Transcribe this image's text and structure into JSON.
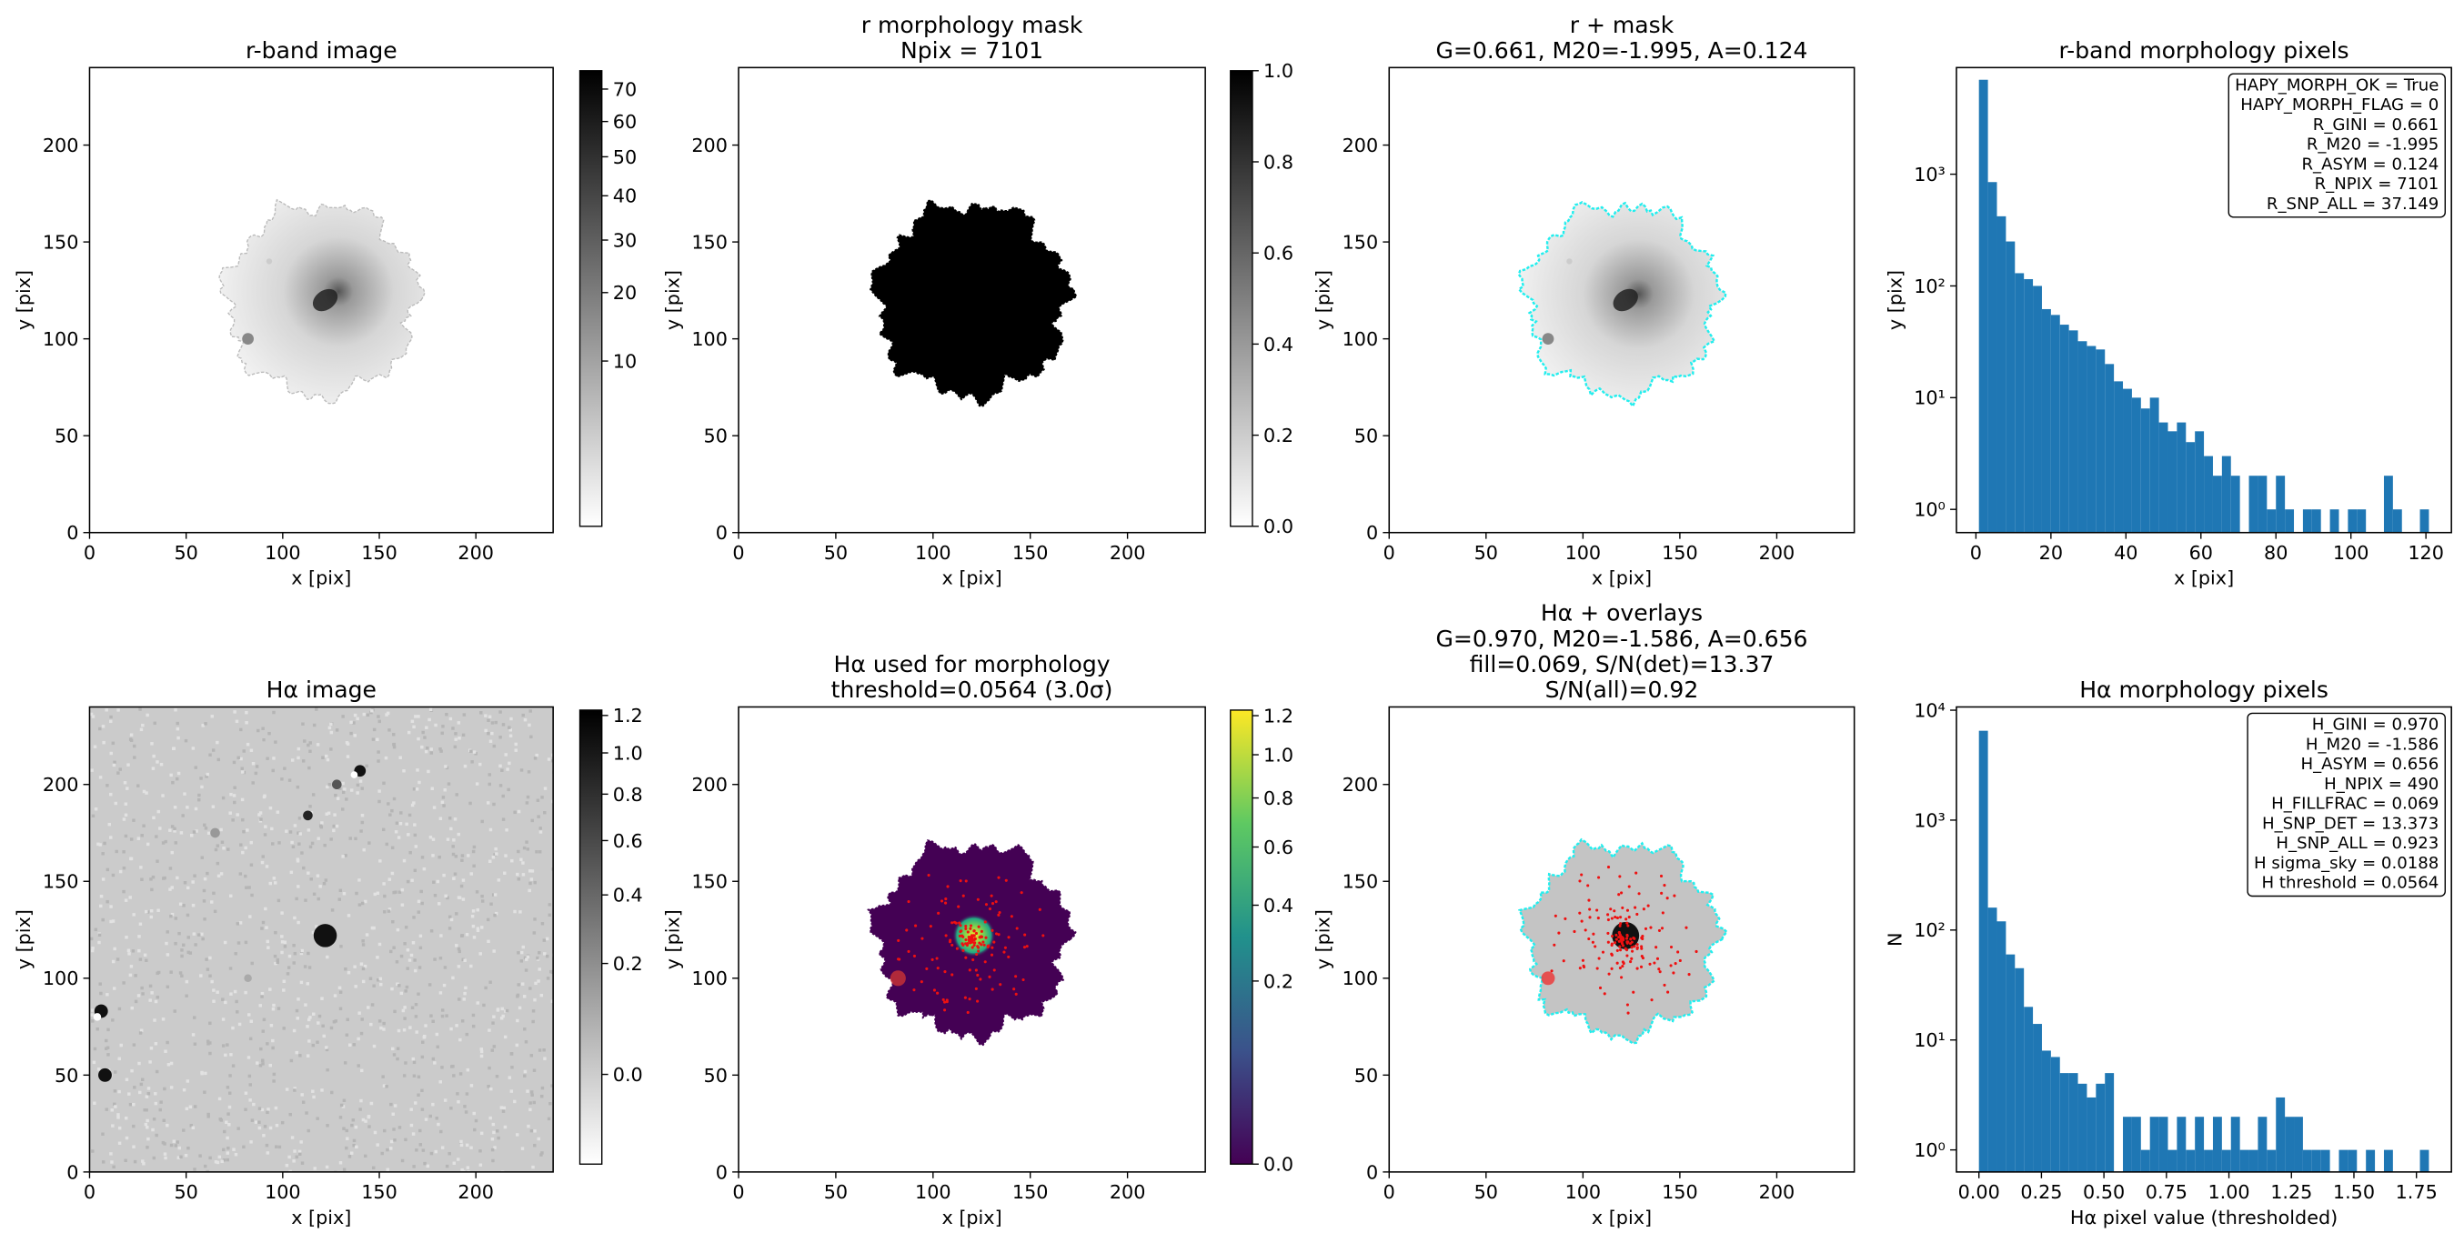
{
  "chart_data": [
    {
      "type": "image",
      "title": [
        "r-band image"
      ],
      "xlabel": "x [pix]",
      "ylabel": "y [pix]",
      "xlim": [
        0,
        240
      ],
      "ylim": [
        0,
        240
      ],
      "xticks": [
        0,
        50,
        100,
        150,
        200
      ],
      "yticks": [
        0,
        50,
        100,
        150,
        200
      ],
      "colorbar": {
        "colormap": "gray_r",
        "scale": "sqrt",
        "clim": [
          0,
          76
        ],
        "ticks": [
          10,
          20,
          30,
          40,
          50,
          60,
          70
        ]
      }
    },
    {
      "type": "image",
      "title": [
        "r morphology mask",
        "Npix = 7101"
      ],
      "xlabel": "x [pix]",
      "ylabel": "y [pix]",
      "xlim": [
        0,
        240
      ],
      "ylim": [
        0,
        240
      ],
      "xticks": [
        0,
        50,
        100,
        150,
        200
      ],
      "yticks": [
        0,
        50,
        100,
        150,
        200
      ],
      "colorbar": {
        "colormap": "gray_r",
        "scale": "linear",
        "clim": [
          0,
          1
        ],
        "ticks": [
          {
            "value": 0,
            "label": "0.0"
          },
          0.2,
          0.4,
          0.6,
          0.8,
          {
            "value": 1,
            "label": "1.0"
          }
        ]
      }
    },
    {
      "type": "image",
      "title": [
        "r + mask",
        "G=0.661, M20=-1.995, A=0.124"
      ],
      "xlabel": "x [pix]",
      "ylabel": "y [pix]",
      "xlim": [
        0,
        240
      ],
      "ylim": [
        0,
        240
      ],
      "xticks": [
        0,
        50,
        100,
        150,
        200
      ],
      "yticks": [
        0,
        50,
        100,
        150,
        200
      ]
    },
    {
      "type": "histogram",
      "title": [
        "r-band morphology pixels"
      ],
      "xlabel": "x [pix]",
      "ylabel": "y [pix]",
      "color": "#1f77b4",
      "log_y": true,
      "xlim": [
        -5.2,
        126.8
      ],
      "ylim": [
        0.62,
        9000
      ],
      "xticks": [
        0,
        20,
        40,
        60,
        80,
        100,
        120
      ],
      "yticks": [
        {
          "value": 1,
          "label": "10⁰"
        },
        {
          "value": 10,
          "label": "10¹"
        },
        {
          "value": 100,
          "label": "10²"
        },
        {
          "value": 1000,
          "label": "10³"
        }
      ],
      "bins": [
        0.8,
        3.2,
        5.6,
        8,
        10.4,
        12.8,
        15.2,
        17.6,
        20,
        22.4,
        24.8,
        27.2,
        29.6,
        32,
        34.4,
        36.8,
        39.2,
        41.6,
        44,
        46.4,
        48.8,
        51.2,
        53.6,
        56,
        58.4,
        60.8,
        63.2,
        65.6,
        68,
        70.4,
        72.8,
        75.2,
        77.6,
        80,
        82.4,
        84.8,
        87.2,
        89.6,
        92,
        94.4,
        96.8,
        99.2,
        101.6,
        104,
        106.4,
        108.8,
        111.2,
        113.6,
        116,
        118.4,
        120.8
      ],
      "values": [
        7000,
        850,
        420,
        250,
        130,
        115,
        100,
        62,
        55,
        45,
        40,
        32,
        29,
        27,
        20,
        14,
        12,
        10,
        8,
        10,
        6,
        5,
        6,
        4,
        5,
        3,
        2,
        3,
        2,
        0,
        2,
        2,
        1,
        2,
        1,
        0,
        1,
        1,
        0,
        1,
        0,
        1,
        1,
        0,
        0,
        2,
        1,
        0,
        0,
        1
      ],
      "annotation": [
        "HAPY_MORPH_OK = True",
        "HAPY_MORPH_FLAG = 0",
        "R_GINI = 0.661",
        "R_M20 = -1.995",
        "R_ASYM = 0.124",
        "R_NPIX = 7101",
        "R_SNP_ALL = 37.149"
      ]
    },
    {
      "type": "image",
      "title": [
        "Hα image"
      ],
      "xlabel": "x [pix]",
      "ylabel": "y [pix]",
      "xlim": [
        0,
        240
      ],
      "ylim": [
        0,
        240
      ],
      "xticks": [
        0,
        50,
        100,
        150,
        200
      ],
      "yticks": [
        0,
        50,
        100,
        150,
        200
      ],
      "colorbar": {
        "colormap": "gray_r",
        "scale": "sqrt",
        "clim": [
          -0.05,
          1.23
        ],
        "ticks": [
          {
            "value": 0,
            "label": "0.0"
          },
          0.2,
          0.4,
          0.6,
          0.8,
          {
            "value": 1,
            "label": "1.0"
          },
          1.2
        ]
      }
    },
    {
      "type": "image",
      "title": [
        "Hα used for morphology",
        "threshold=0.0564 (3.0σ)"
      ],
      "xlabel": "x [pix]",
      "ylabel": "y [pix]",
      "xlim": [
        0,
        240
      ],
      "ylim": [
        0,
        240
      ],
      "xticks": [
        0,
        50,
        100,
        150,
        200
      ],
      "yticks": [
        0,
        50,
        100,
        150,
        200
      ],
      "colorbar": {
        "colormap": "viridis",
        "scale": "sqrt",
        "clim": [
          0,
          1.23
        ],
        "ticks": [
          {
            "value": 0,
            "label": "0.0"
          },
          0.2,
          0.4,
          0.6,
          0.8,
          {
            "value": 1,
            "label": "1.0"
          },
          1.2
        ]
      }
    },
    {
      "type": "image",
      "title": [
        "Hα + overlays",
        "G=0.970, M20=-1.586, A=0.656",
        "fill=0.069, S/N(det)=13.37",
        "S/N(all)=0.92"
      ],
      "xlabel": "x [pix]",
      "ylabel": "y [pix]",
      "xlim": [
        0,
        240
      ],
      "ylim": [
        0,
        240
      ],
      "xticks": [
        0,
        50,
        100,
        150,
        200
      ],
      "yticks": [
        0,
        50,
        100,
        150,
        200
      ]
    },
    {
      "type": "histogram",
      "title": [
        "Hα morphology pixels"
      ],
      "xlabel": "Hα pixel value (thresholded)",
      "ylabel": "N",
      "color": "#1f77b4",
      "log_y": true,
      "xlim": [
        -0.09,
        1.89
      ],
      "ylim": [
        0.63,
        10700
      ],
      "xticks": [
        {
          "value": 0,
          "label": "0.00"
        },
        0.25,
        {
          "value": 0.5,
          "label": "0.50"
        },
        0.75,
        {
          "value": 1,
          "label": "1.00"
        },
        1.25,
        {
          "value": 1.5,
          "label": "1.50"
        },
        1.75
      ],
      "yticks": [
        {
          "value": 1,
          "label": "10⁰"
        },
        {
          "value": 10,
          "label": "10¹"
        },
        {
          "value": 100,
          "label": "10²"
        },
        {
          "value": 1000,
          "label": "10³"
        },
        {
          "value": 10000,
          "label": "10⁴"
        }
      ],
      "bins": [
        0,
        0.036,
        0.072,
        0.108,
        0.144,
        0.18,
        0.216,
        0.252,
        0.288,
        0.324,
        0.36,
        0.396,
        0.432,
        0.468,
        0.504,
        0.54,
        0.576,
        0.612,
        0.648,
        0.684,
        0.72,
        0.756,
        0.792,
        0.828,
        0.864,
        0.9,
        0.936,
        0.972,
        1.008,
        1.044,
        1.08,
        1.116,
        1.152,
        1.188,
        1.224,
        1.26,
        1.296,
        1.332,
        1.368,
        1.404,
        1.44,
        1.476,
        1.512,
        1.548,
        1.584,
        1.62,
        1.656,
        1.692,
        1.728,
        1.764,
        1.8
      ],
      "values": [
        6500,
        160,
        120,
        60,
        45,
        20,
        14,
        8,
        7,
        5,
        5,
        4,
        3,
        4,
        5,
        0,
        2,
        2,
        1,
        2,
        2,
        1,
        2,
        1,
        2,
        1,
        2,
        1,
        2,
        1,
        1,
        2,
        1,
        3,
        2,
        2,
        1,
        1,
        1,
        0,
        1,
        1,
        0,
        1,
        0,
        1,
        0,
        0,
        0,
        1
      ],
      "annotation": [
        "H_GINI = 0.970",
        "H_M20 = -1.586",
        "H_ASYM = 0.656",
        "H_NPIX = 490",
        "H_FILLFRAC = 0.069",
        "H_SNP_DET = 13.373",
        "H_SNP_ALL = 0.923",
        "H sigma_sky = 0.0188",
        "H threshold = 0.0564"
      ]
    }
  ]
}
